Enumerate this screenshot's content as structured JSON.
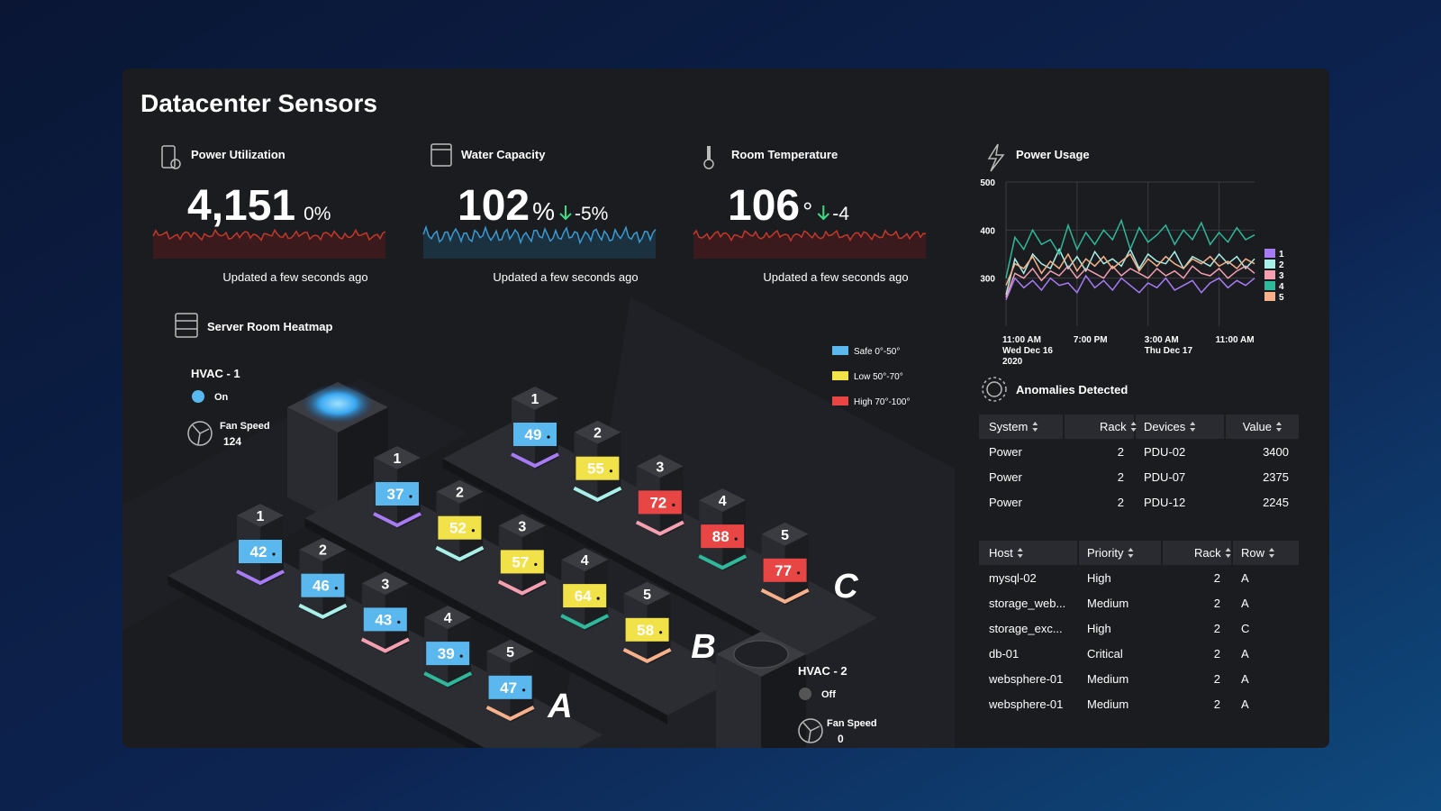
{
  "title": "Datacenter Sensors",
  "kpis": [
    {
      "title": "Power Utilization",
      "value": "4,151",
      "change": "0%",
      "updated": "Updated a few seconds ago"
    },
    {
      "title": "Water Capacity",
      "value": "102",
      "unit": "%",
      "change": "-5%",
      "updated": "Updated a few seconds ago"
    },
    {
      "title": "Room Temperature",
      "value": "106",
      "unit": "°",
      "change": "-4",
      "updated": "Updated a few seconds ago"
    }
  ],
  "power_usage": {
    "type": "line",
    "title": "Power Usage",
    "x": [
      0,
      1,
      2,
      3,
      4,
      5,
      6,
      7,
      8,
      9,
      10,
      11,
      12,
      13,
      14,
      15,
      16,
      17,
      18,
      19,
      20,
      21,
      22,
      23,
      24,
      25,
      26,
      27,
      28
    ],
    "xlim": [
      0,
      28
    ],
    "xticks": [
      {
        "value": 0,
        "label": "11:00 AM",
        "lines": [
          "Wed Dec 16",
          "2020"
        ]
      },
      {
        "value": 8,
        "label": "7:00 PM"
      },
      {
        "value": 16,
        "label": "3:00 AM",
        "lines": [
          "Thu Dec 17"
        ]
      },
      {
        "value": 24,
        "label": "11:00 AM"
      }
    ],
    "ylim": [
      200,
      500
    ],
    "yticks": [
      300,
      400,
      500
    ],
    "grid": true,
    "series": [
      {
        "name": "1",
        "color": "#a77bf3",
        "values": [
          255,
          300,
          280,
          295,
          275,
          300,
          285,
          290,
          270,
          305,
          280,
          295,
          275,
          300,
          285,
          270,
          290,
          280,
          300,
          275,
          285,
          295,
          270,
          290,
          300,
          280,
          295,
          285,
          300
        ]
      },
      {
        "name": "2",
        "color": "#a8f0e8",
        "values": [
          265,
          340,
          310,
          350,
          330,
          320,
          360,
          320,
          345,
          315,
          355,
          330,
          340,
          325,
          360,
          320,
          350,
          335,
          330,
          355,
          320,
          345,
          335,
          325,
          350,
          330,
          345,
          320,
          340
        ]
      },
      {
        "name": "3",
        "color": "#f4a0b0",
        "values": [
          260,
          310,
          300,
          320,
          295,
          315,
          305,
          325,
          300,
          320,
          310,
          300,
          325,
          305,
          320,
          310,
          300,
          320,
          305,
          315,
          300,
          325,
          310,
          305,
          320,
          300,
          315,
          325,
          310
        ]
      },
      {
        "name": "4",
        "color": "#2fb89a",
        "values": [
          300,
          385,
          360,
          400,
          370,
          380,
          350,
          410,
          360,
          395,
          370,
          400,
          380,
          420,
          360,
          405,
          375,
          390,
          410,
          370,
          400,
          380,
          415,
          370,
          395,
          375,
          405,
          380,
          390
        ]
      },
      {
        "name": "5",
        "color": "#f6b08a",
        "values": [
          285,
          330,
          320,
          345,
          310,
          335,
          320,
          350,
          315,
          340,
          325,
          345,
          320,
          335,
          350,
          315,
          340,
          325,
          345,
          330,
          320,
          340,
          330,
          345,
          325,
          335,
          320,
          340,
          330
        ]
      }
    ]
  },
  "heatmap": {
    "title": "Server Room Heatmap",
    "hvac": [
      {
        "name": "HVAC - 1",
        "status": "On",
        "fan_label": "Fan Speed",
        "fan_speed": 124
      },
      {
        "name": "HVAC - 2",
        "status": "Off",
        "fan_label": "Fan Speed",
        "fan_speed": 0
      }
    ],
    "legend": [
      {
        "label": "Safe 0°-50°",
        "color": "#5bb8ee",
        "min": 0,
        "max": 50
      },
      {
        "label": "Low 50°-70°",
        "color": "#f2e24a",
        "min": 50,
        "max": 70
      },
      {
        "label": "High 70°-100°",
        "color": "#e84545",
        "min": 70,
        "max": 100
      }
    ],
    "rows": [
      {
        "name": "A",
        "racks": [
          {
            "number": 1,
            "temp": 42
          },
          {
            "number": 2,
            "temp": 46
          },
          {
            "number": 3,
            "temp": 43
          },
          {
            "number": 4,
            "temp": 39
          },
          {
            "number": 5,
            "temp": 47
          }
        ]
      },
      {
        "name": "B",
        "racks": [
          {
            "number": 1,
            "temp": 37
          },
          {
            "number": 2,
            "temp": 52
          },
          {
            "number": 3,
            "temp": 57
          },
          {
            "number": 4,
            "temp": 64
          },
          {
            "number": 5,
            "temp": 58
          }
        ]
      },
      {
        "name": "C",
        "racks": [
          {
            "number": 1,
            "temp": 49
          },
          {
            "number": 2,
            "temp": 55
          },
          {
            "number": 3,
            "temp": 72
          },
          {
            "number": 4,
            "temp": 88
          },
          {
            "number": 5,
            "temp": 77
          }
        ]
      }
    ]
  },
  "anomalies": {
    "title": "Anomalies Detected",
    "systems": {
      "columns": [
        "System",
        "Rack",
        "Devices",
        "Value"
      ],
      "rows": [
        [
          "Power",
          2,
          "PDU-02",
          3400
        ],
        [
          "Power",
          2,
          "PDU-07",
          2375
        ],
        [
          "Power",
          2,
          "PDU-12",
          2245
        ]
      ]
    },
    "hosts": {
      "columns": [
        "Host",
        "Priority",
        "Rack",
        "Row"
      ],
      "rows": [
        [
          "mysql-02",
          "High",
          2,
          "A"
        ],
        [
          "storage_web...",
          "Medium",
          2,
          "A"
        ],
        [
          "storage_exc...",
          "High",
          2,
          "C"
        ],
        [
          "db-01",
          "Critical",
          2,
          "A"
        ],
        [
          "websphere-01",
          "Medium",
          2,
          "A"
        ],
        [
          "websphere-01",
          "Medium",
          2,
          "A"
        ]
      ]
    }
  }
}
